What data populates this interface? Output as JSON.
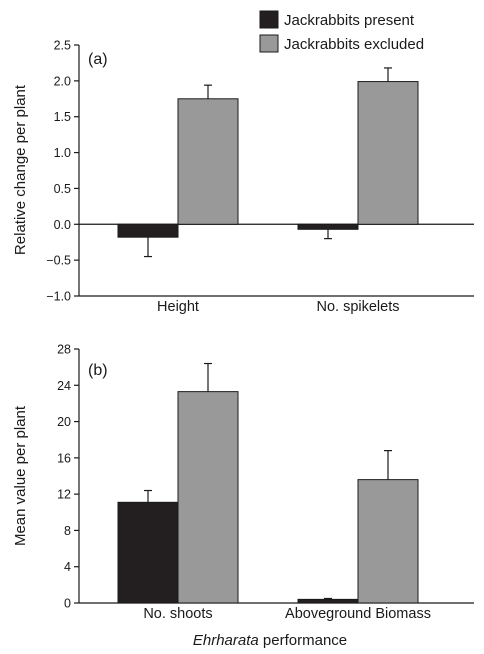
{
  "legend": {
    "entries": [
      {
        "label": "Jackrabbits present",
        "color": "#231f20"
      },
      {
        "label": "Jackrabbits excluded",
        "color": "#999999"
      }
    ]
  },
  "xlabel": {
    "italic": "Ehrharata",
    "rest": " performance"
  },
  "chart_data": [
    {
      "type": "bar",
      "panel": "(a)",
      "ylabel": "Relative change per plant",
      "ylim": [
        -1.0,
        2.5
      ],
      "yticks": [
        -1.0,
        -0.5,
        0.0,
        0.5,
        1.0,
        1.5,
        2.0,
        2.5
      ],
      "ytick_labels": [
        "−1.0",
        "−0.5",
        "0.0",
        "0.5",
        "1.0",
        "1.5",
        "2.0",
        "2.5"
      ],
      "categories": [
        "Height",
        "No. spikelets"
      ],
      "series": [
        {
          "name": "Jackrabbits present",
          "values": [
            -0.18,
            -0.07
          ],
          "errors": [
            0.27,
            0.13
          ]
        },
        {
          "name": "Jackrabbits excluded",
          "values": [
            1.75,
            1.99
          ],
          "errors": [
            0.19,
            0.19
          ]
        }
      ]
    },
    {
      "type": "bar",
      "panel": "(b)",
      "ylabel": "Mean value per plant",
      "ylim": [
        0,
        28
      ],
      "yticks": [
        0,
        4,
        8,
        12,
        16,
        20,
        24,
        28
      ],
      "ytick_labels": [
        "0",
        "4",
        "8",
        "12",
        "16",
        "20",
        "24",
        "28"
      ],
      "categories": [
        "No. shoots",
        "Aboveground Biomass"
      ],
      "series": [
        {
          "name": "Jackrabbits present",
          "values": [
            11.1,
            0.4
          ],
          "errors": [
            1.3,
            0.1
          ]
        },
        {
          "name": "Jackrabbits excluded",
          "values": [
            23.3,
            13.6
          ],
          "errors": [
            3.1,
            3.2
          ]
        }
      ]
    }
  ]
}
